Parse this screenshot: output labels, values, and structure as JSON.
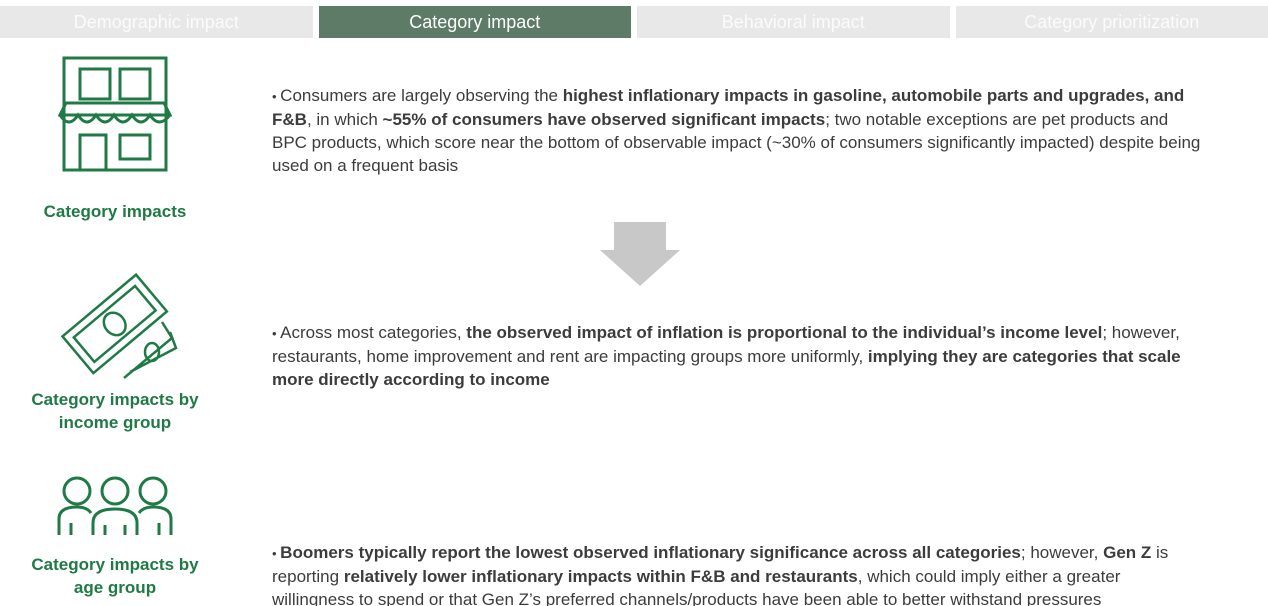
{
  "tabs": [
    {
      "label": "Demographic impact",
      "active": false
    },
    {
      "label": "Category impact",
      "active": true
    },
    {
      "label": "Behavioral impact",
      "active": false
    },
    {
      "label": "Category prioritization",
      "active": false
    }
  ],
  "sections": [
    {
      "label": "Category impacts",
      "runs": [
        {
          "text": "Consumers are largely observing the ",
          "bold": false
        },
        {
          "text": "highest inflationary impacts in gasoline, automobile parts and upgrades, and F&B",
          "bold": true
        },
        {
          "text": ", in which ",
          "bold": false
        },
        {
          "text": "~55% of consumers have observed significant impacts",
          "bold": true
        },
        {
          "text": "; two notable exceptions are pet products and BPC products, which score near the bottom of observable impact (~30% of consumers significantly impacted) despite being used on a frequent basis",
          "bold": false
        }
      ]
    },
    {
      "label": "Category impacts by income group",
      "runs": [
        {
          "text": "Across most categories, ",
          "bold": false
        },
        {
          "text": "the observed impact of inflation is proportional to the individual’s income level",
          "bold": true
        },
        {
          "text": "; however, restaurants, home improvement and rent are impacting groups more uniformly, ",
          "bold": false
        },
        {
          "text": "implying they are categories that scale more directly according to income",
          "bold": true
        }
      ]
    },
    {
      "label": "Category impacts by age group",
      "runs": [
        {
          "text": "Boomers typically report the lowest observed inflationary significance across all categories",
          "bold": true
        },
        {
          "text": "; however, ",
          "bold": false
        },
        {
          "text": "Gen Z",
          "bold": true
        },
        {
          "text": " is reporting ",
          "bold": false
        },
        {
          "text": "relatively lower inflationary impacts within F&B and restaurants",
          "bold": true
        },
        {
          "text": ", which could imply either a greater willingness to spend or that Gen Z’s preferred channels/products have been able to better withstand pressures",
          "bold": false
        }
      ]
    }
  ]
}
